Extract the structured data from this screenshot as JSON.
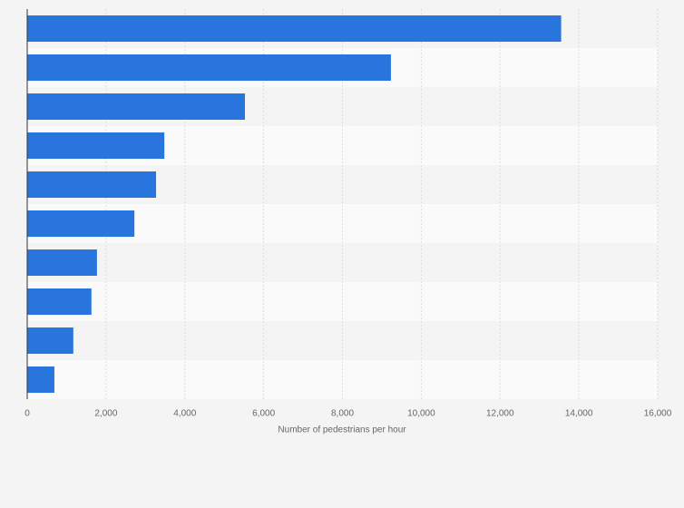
{
  "chart_data": {
    "type": "bar",
    "orientation": "horizontal",
    "categories": [
      null,
      null,
      null,
      null,
      null,
      null,
      null,
      null,
      null,
      null
    ],
    "values": [
      13550,
      9230,
      5525,
      3480,
      3270,
      2720,
      1770,
      1630,
      1170,
      690
    ],
    "color": "#2876dd",
    "xlabel": "Number of pedestrians per hour",
    "xlim": [
      0,
      16000
    ],
    "xticks": [
      0,
      {
        "value": 2000,
        "label": "2,000"
      },
      {
        "value": 4000,
        "label": "4,000"
      },
      {
        "value": 6000,
        "label": "6,000"
      },
      {
        "value": 8000,
        "label": "8,000"
      },
      {
        "value": 10000,
        "label": "10,000"
      },
      {
        "value": 12000,
        "label": "12,000"
      },
      {
        "value": 14000,
        "label": "14,000"
      },
      {
        "value": 16000,
        "label": "16,000"
      }
    ],
    "grid": true
  }
}
